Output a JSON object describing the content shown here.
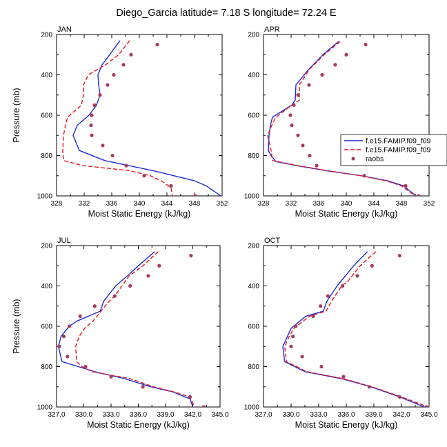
{
  "figure": {
    "title": "Diego_Garcia  latitude= 7.18 S longitude= 72.24 E"
  },
  "colors": {
    "model1": "#1f2bd6",
    "model2": "#e8141c",
    "raobs": "#a83a5e"
  },
  "legend": {
    "panel": "APR",
    "placement": "right",
    "entries": [
      "f.e15.FAMIP.f09_f09",
      "f.e15.FAMIP.f09_f09",
      "raobs"
    ]
  },
  "chart_data": [
    {
      "type": "line",
      "title": "JAN",
      "xlabel": "Moist Static Energy (kJ/kg)",
      "ylabel": "Pressure (mb)",
      "xlim": [
        328,
        352
      ],
      "xticks": [
        328,
        332,
        336,
        340,
        344,
        348,
        352
      ],
      "xtick_labels": [
        "328",
        "332",
        "336",
        "340",
        "344",
        "348",
        "352"
      ],
      "ylim": [
        1000,
        200
      ],
      "yticks": [
        200,
        400,
        600,
        800,
        1000
      ],
      "series": [
        {
          "style": "solid",
          "points": [
            [
              337.2,
              230
            ],
            [
              335.7,
              300
            ],
            [
              334.6,
              350
            ],
            [
              334.0,
              400
            ],
            [
              334.1,
              450
            ],
            [
              334.3,
              500
            ],
            [
              333.8,
              550
            ],
            [
              332.7,
              600
            ],
            [
              331.0,
              650
            ],
            [
              330.4,
              700
            ],
            [
              331.0,
              750
            ],
            [
              331.3,
              775
            ],
            [
              335.0,
              825
            ],
            [
              342.0,
              875
            ],
            [
              348.0,
              925
            ],
            [
              349.7,
              950
            ],
            [
              351.8,
              1000
            ]
          ]
        },
        {
          "style": "dashed",
          "points": [
            [
              338.6,
              230
            ],
            [
              337.0,
              300
            ],
            [
              335.1,
              350
            ],
            [
              332.6,
              400
            ],
            [
              331.9,
              450
            ],
            [
              331.9,
              500
            ],
            [
              331.6,
              550
            ],
            [
              329.6,
              610
            ],
            [
              329.3,
              650
            ],
            [
              329.0,
              700
            ],
            [
              328.9,
              775
            ],
            [
              329.0,
              825
            ],
            [
              331.8,
              850
            ],
            [
              338.6,
              875
            ],
            [
              341.6,
              900
            ],
            [
              343.2,
              925
            ],
            [
              344.6,
              960
            ],
            [
              344.8,
              1000
            ]
          ]
        },
        {
          "style": "markers",
          "points": [
            [
              342.6,
              250
            ],
            [
              338.8,
              300
            ],
            [
              337.7,
              350
            ],
            [
              336.3,
              400
            ],
            [
              335.4,
              450
            ],
            [
              334.3,
              500
            ],
            [
              333.5,
              550
            ],
            [
              333.1,
              600
            ],
            [
              333.0,
              650
            ],
            [
              333.1,
              700
            ],
            [
              334.7,
              750
            ],
            [
              336.1,
              800
            ],
            [
              338.1,
              850
            ],
            [
              340.7,
              900
            ],
            [
              344.6,
              950
            ],
            [
              348.1,
              1000
            ]
          ]
        }
      ]
    },
    {
      "type": "line",
      "title": "APR",
      "xlabel": "Moist Static Energy (kJ/kg)",
      "ylabel": "",
      "xlim": [
        328,
        352
      ],
      "xticks": [
        328,
        332,
        336,
        340,
        344,
        348,
        352
      ],
      "xtick_labels": [
        "328",
        "332",
        "336",
        "340",
        "344",
        "348",
        "352"
      ],
      "ylim": [
        1000,
        200
      ],
      "yticks": [
        200,
        400,
        600,
        800,
        1000
      ],
      "series": [
        {
          "style": "solid",
          "points": [
            [
              338.9,
              235
            ],
            [
              336.6,
              300
            ],
            [
              334.5,
              375
            ],
            [
              332.7,
              450
            ],
            [
              332.6,
              525
            ],
            [
              332.1,
              550
            ],
            [
              329.3,
              610
            ],
            [
              329.0,
              650
            ],
            [
              328.8,
              700
            ],
            [
              328.7,
              775
            ],
            [
              329.1,
              800
            ],
            [
              329.8,
              830
            ],
            [
              332.8,
              850
            ],
            [
              337.1,
              875
            ],
            [
              342.2,
              900
            ],
            [
              346.0,
              925
            ],
            [
              348.3,
              950
            ],
            [
              350.1,
              1000
            ]
          ]
        },
        {
          "style": "dashed",
          "points": [
            [
              339.1,
              235
            ],
            [
              336.8,
              300
            ],
            [
              334.6,
              375
            ],
            [
              333.2,
              450
            ],
            [
              333.2,
              525
            ],
            [
              332.1,
              550
            ],
            [
              329.8,
              610
            ],
            [
              329.2,
              650
            ],
            [
              328.6,
              700
            ],
            [
              329.1,
              775
            ],
            [
              329.3,
              825
            ],
            [
              333.0,
              850
            ],
            [
              337.3,
              875
            ],
            [
              342.1,
              900
            ],
            [
              345.8,
              925
            ],
            [
              348.0,
              950
            ],
            [
              350.0,
              1000
            ]
          ]
        },
        {
          "style": "markers",
          "points": [
            [
              342.8,
              250
            ],
            [
              340.0,
              300
            ],
            [
              338.4,
              350
            ],
            [
              336.5,
              400
            ],
            [
              334.6,
              450
            ],
            [
              333.0,
              500
            ],
            [
              332.4,
              550
            ],
            [
              331.9,
              600
            ],
            [
              332.1,
              650
            ],
            [
              333.0,
              700
            ],
            [
              333.7,
              750
            ],
            [
              334.7,
              800
            ],
            [
              335.7,
              850
            ],
            [
              342.6,
              900
            ],
            [
              348.6,
              950
            ],
            [
              350.5,
              1000
            ]
          ]
        }
      ]
    },
    {
      "type": "line",
      "title": "JUL",
      "xlabel": "Moist Static Energy (kJ/kg)",
      "ylabel": "Pressure (mb)",
      "xlim": [
        327,
        345
      ],
      "xticks": [
        327,
        330,
        333,
        336,
        339,
        342,
        345
      ],
      "xtick_labels": [
        "327.0",
        "330.0",
        "333.0",
        "336.0",
        "339.0",
        "342.0",
        "345.0"
      ],
      "ylim": [
        1000,
        200
      ],
      "yticks": [
        200,
        400,
        600,
        800,
        1000
      ],
      "series": [
        {
          "style": "solid",
          "points": [
            [
              337.8,
              230
            ],
            [
              336.0,
              300
            ],
            [
              334.8,
              350
            ],
            [
              333.5,
              400
            ],
            [
              332.2,
              475
            ],
            [
              331.8,
              525
            ],
            [
              329.2,
              575
            ],
            [
              328.4,
              600
            ],
            [
              327.5,
              650
            ],
            [
              327.2,
              700
            ],
            [
              327.6,
              775
            ],
            [
              331.2,
              825
            ],
            [
              334.5,
              860
            ],
            [
              337.4,
              900
            ],
            [
              339.8,
              925
            ],
            [
              341.7,
              960
            ],
            [
              342.0,
              1000
            ]
          ]
        },
        {
          "style": "dashed",
          "points": [
            [
              338.2,
              230
            ],
            [
              336.5,
              300
            ],
            [
              335.0,
              350
            ],
            [
              333.4,
              450
            ],
            [
              332.8,
              475
            ],
            [
              331.0,
              575
            ],
            [
              330.1,
              610
            ],
            [
              329.5,
              650
            ],
            [
              329.1,
              700
            ],
            [
              329.2,
              775
            ],
            [
              329.8,
              800
            ],
            [
              330.9,
              825
            ],
            [
              335.1,
              860
            ],
            [
              337.7,
              900
            ],
            [
              339.9,
              925
            ],
            [
              341.7,
              950
            ],
            [
              342.2,
              1000
            ]
          ]
        },
        {
          "style": "markers",
          "points": [
            [
              341.8,
              250
            ],
            [
              338.3,
              300
            ],
            [
              337.1,
              350
            ],
            [
              335.1,
              400
            ],
            [
              333.4,
              450
            ],
            [
              331.2,
              500
            ],
            [
              329.6,
              550
            ],
            [
              328.4,
              600
            ],
            [
              327.8,
              650
            ],
            [
              327.3,
              700
            ],
            [
              328.2,
              750
            ],
            [
              330.2,
              800
            ],
            [
              333.0,
              850
            ],
            [
              336.5,
              900
            ],
            [
              341.7,
              950
            ],
            [
              343.2,
              1000
            ]
          ]
        }
      ]
    },
    {
      "type": "line",
      "title": "OCT",
      "xlabel": "Moist Static Energy (kJ/kg)",
      "ylabel": "",
      "xlim": [
        327,
        345
      ],
      "xticks": [
        327,
        330,
        333,
        336,
        339,
        342,
        345
      ],
      "xtick_labels": [
        "327.0",
        "330.0",
        "333.0",
        "336.0",
        "339.0",
        "342.0",
        "345.0"
      ],
      "ylim": [
        1000,
        200
      ],
      "yticks": [
        200,
        400,
        600,
        800,
        1000
      ],
      "series": [
        {
          "style": "solid",
          "points": [
            [
              338.3,
              230
            ],
            [
              336.8,
              300
            ],
            [
              335.9,
              350
            ],
            [
              335.0,
              400
            ],
            [
              333.9,
              475
            ],
            [
              333.5,
              525
            ],
            [
              331.6,
              550
            ],
            [
              330.0,
              610
            ],
            [
              329.6,
              650
            ],
            [
              329.1,
              700
            ],
            [
              329.3,
              775
            ],
            [
              331.5,
              825
            ],
            [
              335.5,
              860
            ],
            [
              338.7,
              900
            ],
            [
              341.8,
              950
            ],
            [
              344.5,
              1000
            ]
          ]
        },
        {
          "style": "dashed",
          "points": [
            [
              339.2,
              230
            ],
            [
              337.5,
              300
            ],
            [
              336.2,
              375
            ],
            [
              335.5,
              400
            ],
            [
              334.4,
              475
            ],
            [
              333.8,
              525
            ],
            [
              332.0,
              550
            ],
            [
              330.3,
              610
            ],
            [
              329.8,
              650
            ],
            [
              329.3,
              700
            ],
            [
              329.5,
              775
            ],
            [
              331.7,
              825
            ],
            [
              335.7,
              860
            ],
            [
              338.8,
              900
            ],
            [
              342.0,
              950
            ],
            [
              344.9,
              1000
            ]
          ]
        },
        {
          "style": "markers",
          "points": [
            [
              341.8,
              250
            ],
            [
              338.8,
              300
            ],
            [
              337.2,
              350
            ],
            [
              335.6,
              400
            ],
            [
              334.0,
              450
            ],
            [
              333.2,
              500
            ],
            [
              332.4,
              550
            ],
            [
              330.5,
              600
            ],
            [
              330.2,
              650
            ],
            [
              330.0,
              700
            ],
            [
              331.2,
              750
            ],
            [
              333.3,
              800
            ],
            [
              335.7,
              850
            ],
            [
              338.5,
              900
            ],
            [
              341.8,
              950
            ],
            [
              344.7,
              1000
            ]
          ]
        }
      ]
    }
  ]
}
